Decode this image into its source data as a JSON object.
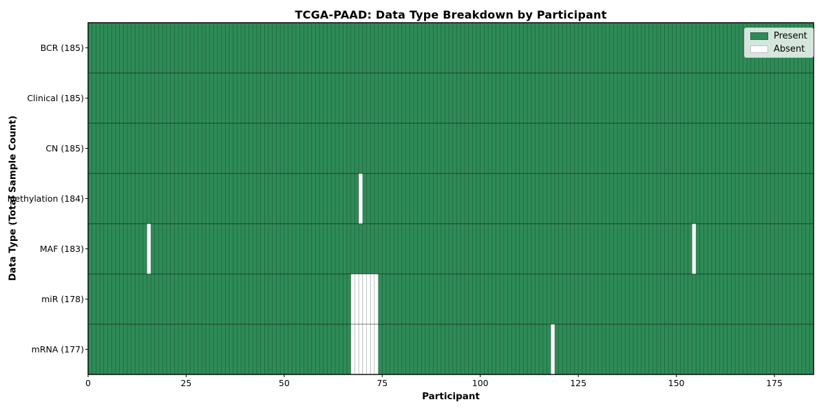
{
  "chart_data": {
    "type": "heatmap",
    "title": "TCGA-PAAD: Data Type Breakdown by Participant",
    "xlabel": "Participant",
    "ylabel": "Data Type (Total Sample Count)",
    "x_ticks": [
      0,
      25,
      50,
      75,
      100,
      125,
      150,
      175
    ],
    "xlim": [
      0,
      185
    ],
    "n_participants": 185,
    "grid": true,
    "legend_position": "upper right",
    "rows": [
      {
        "data_type": "BCR",
        "label": "BCR (185)",
        "total_samples": 185,
        "absent_participants": []
      },
      {
        "data_type": "Clinical",
        "label": "Clinical (185)",
        "total_samples": 185,
        "absent_participants": []
      },
      {
        "data_type": "CN",
        "label": "CN (185)",
        "total_samples": 185,
        "absent_participants": []
      },
      {
        "data_type": "Methylation",
        "label": "Methylation (184)",
        "total_samples": 184,
        "absent_participants": [
          69
        ]
      },
      {
        "data_type": "MAF",
        "label": "MAF (183)",
        "total_samples": 183,
        "absent_participants": [
          15,
          154
        ]
      },
      {
        "data_type": "miR",
        "label": "miR (178)",
        "total_samples": 178,
        "absent_participants": [
          67,
          68,
          69,
          70,
          71,
          72,
          73
        ]
      },
      {
        "data_type": "mRNA",
        "label": "mRNA (177)",
        "total_samples": 177,
        "absent_participants": [
          67,
          68,
          69,
          70,
          71,
          72,
          73,
          118
        ]
      }
    ],
    "legend": [
      {
        "label": "Present",
        "color": "#2e8b57"
      },
      {
        "label": "Absent",
        "color": "#ffffff"
      }
    ],
    "colors": {
      "present": "#2e8b57",
      "absent": "#ffffff",
      "background": "#ffffff"
    }
  }
}
